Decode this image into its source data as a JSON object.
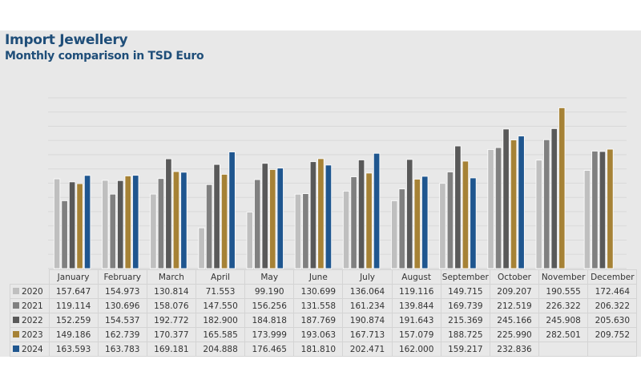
{
  "chart_data": {
    "type": "bar",
    "title": "Import Jewellery",
    "subtitle": "Monthly comparison in TSD Euro",
    "xlabel": "",
    "ylabel": "",
    "ylim": [
      0,
      300
    ],
    "ytick_step": 25,
    "grid": true,
    "legend": "data-table-left",
    "categories": [
      "January",
      "February",
      "March",
      "April",
      "May",
      "June",
      "July",
      "August",
      "September",
      "October",
      "November",
      "December"
    ],
    "series": [
      {
        "name": "2020",
        "color": "#bfbfbf",
        "values": [
          157.647,
          154.973,
          130.814,
          71.553,
          99.19,
          130.699,
          136.064,
          119.116,
          149.715,
          209.207,
          190.555,
          172.464
        ],
        "labels": [
          "157.647",
          "154.973",
          "130.814",
          "71.553",
          "99.190",
          "130.699",
          "136.064",
          "119.116",
          "149.715",
          "209.207",
          "190.555",
          "172.464"
        ]
      },
      {
        "name": "2021",
        "color": "#808080",
        "values": [
          119.114,
          130.696,
          158.076,
          147.55,
          156.256,
          131.558,
          161.234,
          139.844,
          169.739,
          212.519,
          226.322,
          206.322
        ],
        "labels": [
          "119.114",
          "130.696",
          "158.076",
          "147.550",
          "156.256",
          "131.558",
          "161.234",
          "139.844",
          "169.739",
          "212.519",
          "226.322",
          "206.322"
        ]
      },
      {
        "name": "2022",
        "color": "#595959",
        "values": [
          152.259,
          154.537,
          192.772,
          182.9,
          184.818,
          187.769,
          190.874,
          191.643,
          215.369,
          245.166,
          245.908,
          205.63
        ],
        "labels": [
          "152.259",
          "154.537",
          "192.772",
          "182.900",
          "184.818",
          "187.769",
          "190.874",
          "191.643",
          "215.369",
          "245.166",
          "245.908",
          "205.630"
        ]
      },
      {
        "name": "2023",
        "color": "#a68236",
        "values": [
          149.186,
          162.739,
          170.377,
          165.585,
          173.999,
          193.063,
          167.713,
          157.079,
          188.725,
          225.99,
          282.501,
          209.752
        ],
        "labels": [
          "149.186",
          "162.739",
          "170.377",
          "165.585",
          "173.999",
          "193.063",
          "167.713",
          "157.079",
          "188.725",
          "225.990",
          "282.501",
          "209.752"
        ]
      },
      {
        "name": "2024",
        "color": "#1f568f",
        "values": [
          163.593,
          163.783,
          169.181,
          204.888,
          176.465,
          181.81,
          202.471,
          162.0,
          159.217,
          232.836,
          null,
          null
        ],
        "labels": [
          "163.593",
          "163.783",
          "169.181",
          "204.888",
          "176.465",
          "181.810",
          "202.471",
          "162.000",
          "159.217",
          "232.836",
          "",
          ""
        ]
      }
    ]
  }
}
